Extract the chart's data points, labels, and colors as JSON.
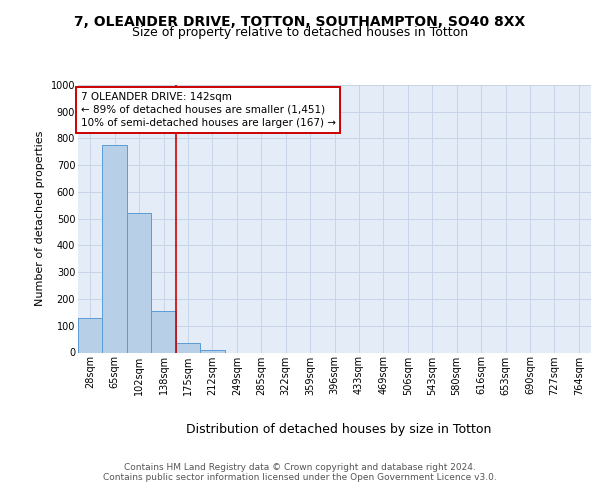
{
  "title1": "7, OLEANDER DRIVE, TOTTON, SOUTHAMPTON, SO40 8XX",
  "title2": "Size of property relative to detached houses in Totton",
  "xlabel": "Distribution of detached houses by size in Totton",
  "ylabel": "Number of detached properties",
  "categories": [
    "28sqm",
    "65sqm",
    "102sqm",
    "138sqm",
    "175sqm",
    "212sqm",
    "249sqm",
    "285sqm",
    "322sqm",
    "359sqm",
    "396sqm",
    "433sqm",
    "469sqm",
    "506sqm",
    "543sqm",
    "580sqm",
    "616sqm",
    "653sqm",
    "690sqm",
    "727sqm",
    "764sqm"
  ],
  "values": [
    130,
    775,
    520,
    155,
    37,
    10,
    0,
    0,
    0,
    0,
    0,
    0,
    0,
    0,
    0,
    0,
    0,
    0,
    0,
    0,
    0
  ],
  "bar_color": "#b8cfe8",
  "bar_edge_color": "#5b9bd5",
  "grid_color": "#c8d4e8",
  "background_color": "#e4ecf7",
  "red_line_x": 3.5,
  "ylim": [
    0,
    1000
  ],
  "yticks": [
    0,
    100,
    200,
    300,
    400,
    500,
    600,
    700,
    800,
    900,
    1000
  ],
  "annotation_title": "7 OLEANDER DRIVE: 142sqm",
  "annotation_line2": "← 89% of detached houses are smaller (1,451)",
  "annotation_line3": "10% of semi-detached houses are larger (167) →",
  "footer1": "Contains HM Land Registry data © Crown copyright and database right 2024.",
  "footer2": "Contains public sector information licensed under the Open Government Licence v3.0.",
  "title1_fontsize": 10,
  "title2_fontsize": 9,
  "xlabel_fontsize": 9,
  "ylabel_fontsize": 8,
  "tick_fontsize": 7,
  "annotation_fontsize": 7.5,
  "footer_fontsize": 6.5
}
